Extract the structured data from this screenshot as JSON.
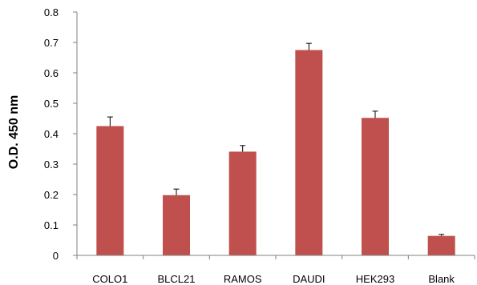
{
  "chart_data": {
    "type": "bar",
    "title": "",
    "xlabel": "",
    "ylabel": "O.D. 450 nm",
    "categories": [
      "COLO1",
      "BLCL21",
      "RAMOS",
      "DAUDI",
      "HEK293",
      "Blank"
    ],
    "series": [
      {
        "values": [
          0.425,
          0.198,
          0.341,
          0.675,
          0.452,
          0.064
        ],
        "errors": [
          0.03,
          0.02,
          0.02,
          0.022,
          0.022,
          0.005
        ],
        "color": "#c0504d"
      }
    ],
    "yticks": [
      "0",
      "0.1",
      "0.2",
      "0.3",
      "0.4",
      "0.5",
      "0.6",
      "0.7",
      "0.8"
    ],
    "ylim": [
      0,
      0.8
    ],
    "grid": false,
    "legend": "none"
  }
}
